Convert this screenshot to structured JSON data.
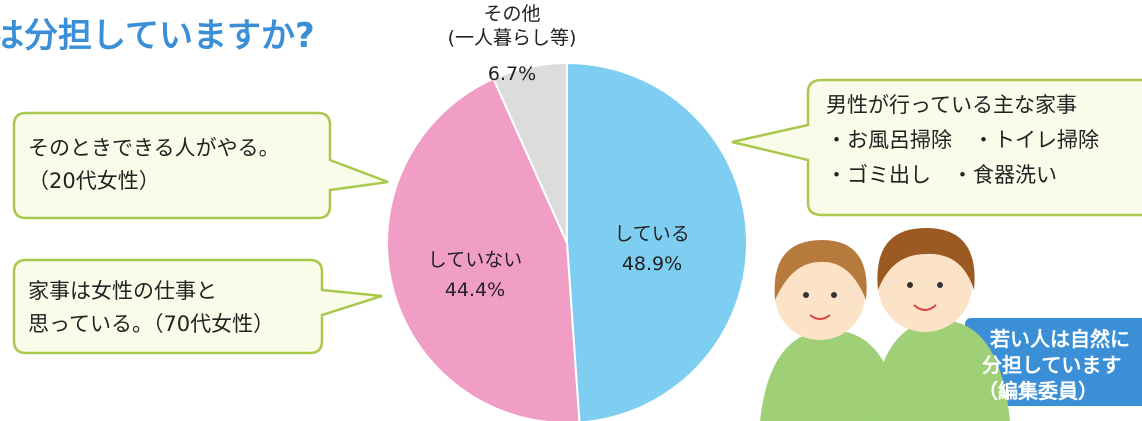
{
  "chart_data": {
    "type": "pie",
    "title": "は分担していますか?",
    "categories": [
      "している",
      "していない",
      "その他\n(一人暮らし等)"
    ],
    "values": [
      48.9,
      44.4,
      6.7
    ],
    "value_labels": [
      "48.9%",
      "44.4%",
      "6.7%"
    ],
    "colors": [
      "#7ecef2",
      "#f19ec6",
      "#dcdcdc"
    ],
    "annotations": {
      "left_top": [
        "そのときできる人がやる。",
        "（20代女性）"
      ],
      "left_bottom": [
        "家事は女性の仕事と",
        "思っている。（70代女性）"
      ],
      "right_top": [
        "男性が行っている主な家事",
        "・お風呂掃除　・トイレ掃除",
        "・ゴミ出し　・食器洗い"
      ],
      "right_box": [
        "若い人は自然に",
        "分担しています",
        "（編集委員）"
      ]
    }
  }
}
